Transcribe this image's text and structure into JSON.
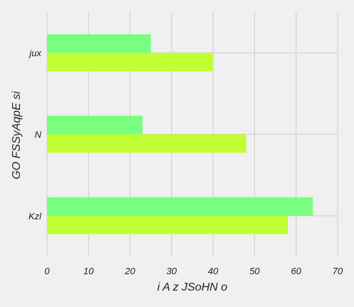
{
  "chart_data": {
    "type": "bar",
    "orientation": "horizontal",
    "categories": [
      "jux",
      "N",
      "Kzl"
    ],
    "series": [
      {
        "color": "#78ff80",
        "values": [
          25,
          23,
          64
        ]
      },
      {
        "color": "#c0ff33",
        "values": [
          40,
          48,
          58
        ]
      }
    ],
    "xlabel": "i A z JSoHN o",
    "ylabel": "GO FSSyAqpE si",
    "xlim": [
      0,
      70
    ],
    "xticks": [
      0,
      10,
      20,
      30,
      40,
      50,
      60,
      70
    ],
    "grid": true,
    "legend": "none",
    "colors": {
      "background": "#f0f0f0",
      "grid": "#cbcbcb",
      "text": "#222222"
    }
  }
}
